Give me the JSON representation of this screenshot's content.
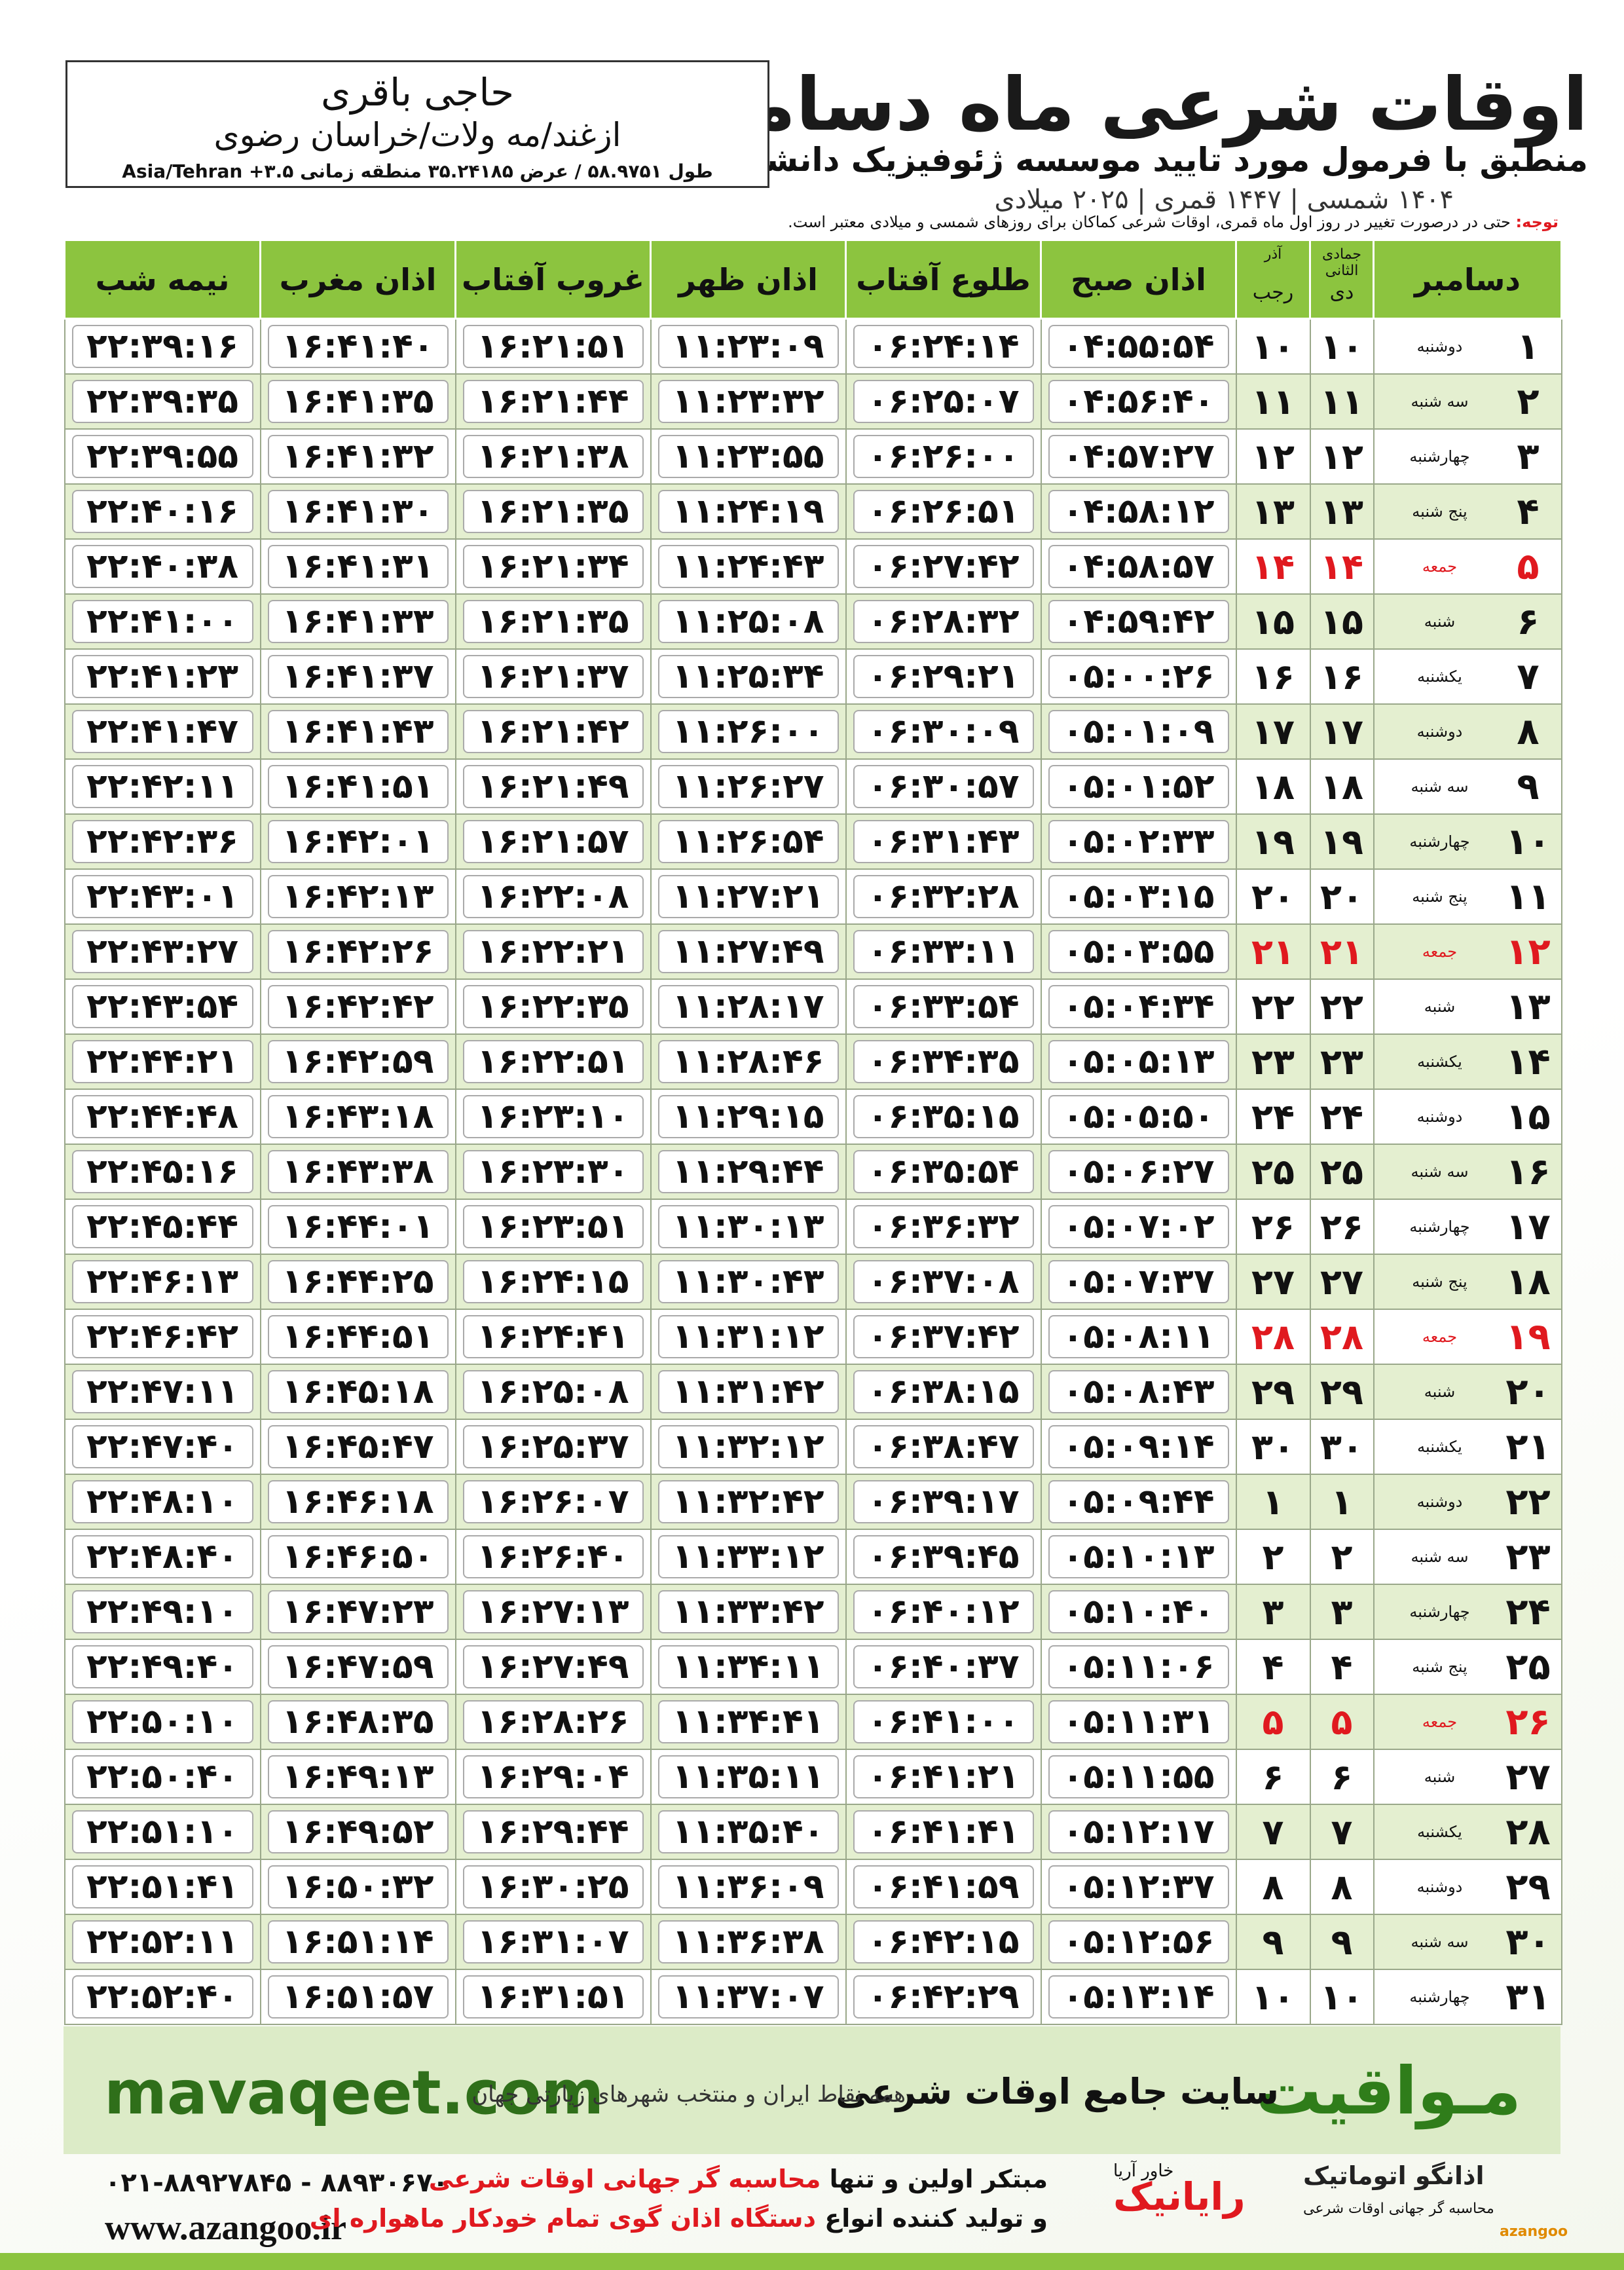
{
  "header": {
    "title": "اوقات شرعی ماه دسامبر",
    "subtitle": "منطبق با فرمول مورد تایید موسسه ژئوفیزیک دانشگاه تهران",
    "dates": "۱۴۰۴ شمسی | ۱۴۴۷ قمری | ۲۰۲۵ میلادی"
  },
  "location": {
    "name": "حاجی باقری",
    "address": "ازغند/مه ولات/خراسان رضوی",
    "coords": "طول ۵۸.۹۷۵۱ / عرض ۳۵.۲۴۱۸۵ منطقه زمانی ۳.۵+ Asia/Tehran"
  },
  "note": {
    "label": "توجه:",
    "text": "حتی در درصورت تغییر در روز اول ماه قمری، اوقات شرعی کماکان برای روزهای شمسی و میلادی معتبر است."
  },
  "table": {
    "highlight_rows": [
      4,
      11,
      18,
      25
    ],
    "highlight_color": "#e0191f",
    "columns": [
      {
        "label": "دسامبر"
      },
      {
        "label": "دی",
        "top": "جمادی الثانی"
      },
      {
        "label": "رجب",
        "top": "آذر"
      },
      {
        "label": "اذان صبح"
      },
      {
        "label": "طلوع آفتاب"
      },
      {
        "label": "اذان ظهر"
      },
      {
        "label": "غروب آفتاب"
      },
      {
        "label": "اذان مغرب"
      },
      {
        "label": "نیمه شب"
      }
    ],
    "rows": [
      [
        "۱",
        "دوشنبه",
        "۱۰",
        "۱۰",
        "۰۴:۵۵:۵۴",
        "۰۶:۲۴:۱۴",
        "۱۱:۲۳:۰۹",
        "۱۶:۲۱:۵۱",
        "۱۶:۴۱:۴۰",
        "۲۲:۳۹:۱۶"
      ],
      [
        "۲",
        "سه شنبه",
        "۱۱",
        "۱۱",
        "۰۴:۵۶:۴۰",
        "۰۶:۲۵:۰۷",
        "۱۱:۲۳:۳۲",
        "۱۶:۲۱:۴۴",
        "۱۶:۴۱:۳۵",
        "۲۲:۳۹:۳۵"
      ],
      [
        "۳",
        "چهارشنبه",
        "۱۲",
        "۱۲",
        "۰۴:۵۷:۲۷",
        "۰۶:۲۶:۰۰",
        "۱۱:۲۳:۵۵",
        "۱۶:۲۱:۳۸",
        "۱۶:۴۱:۳۲",
        "۲۲:۳۹:۵۵"
      ],
      [
        "۴",
        "پنج شنبه",
        "۱۳",
        "۱۳",
        "۰۴:۵۸:۱۲",
        "۰۶:۲۶:۵۱",
        "۱۱:۲۴:۱۹",
        "۱۶:۲۱:۳۵",
        "۱۶:۴۱:۳۰",
        "۲۲:۴۰:۱۶"
      ],
      [
        "۵",
        "جمعه",
        "۱۴",
        "۱۴",
        "۰۴:۵۸:۵۷",
        "۰۶:۲۷:۴۲",
        "۱۱:۲۴:۴۳",
        "۱۶:۲۱:۳۴",
        "۱۶:۴۱:۳۱",
        "۲۲:۴۰:۳۸"
      ],
      [
        "۶",
        "شنبه",
        "۱۵",
        "۱۵",
        "۰۴:۵۹:۴۲",
        "۰۶:۲۸:۳۲",
        "۱۱:۲۵:۰۸",
        "۱۶:۲۱:۳۵",
        "۱۶:۴۱:۳۳",
        "۲۲:۴۱:۰۰"
      ],
      [
        "۷",
        "یکشنبه",
        "۱۶",
        "۱۶",
        "۰۵:۰۰:۲۶",
        "۰۶:۲۹:۲۱",
        "۱۱:۲۵:۳۴",
        "۱۶:۲۱:۳۷",
        "۱۶:۴۱:۳۷",
        "۲۲:۴۱:۲۳"
      ],
      [
        "۸",
        "دوشنبه",
        "۱۷",
        "۱۷",
        "۰۵:۰۱:۰۹",
        "۰۶:۳۰:۰۹",
        "۱۱:۲۶:۰۰",
        "۱۶:۲۱:۴۲",
        "۱۶:۴۱:۴۳",
        "۲۲:۴۱:۴۷"
      ],
      [
        "۹",
        "سه شنبه",
        "۱۸",
        "۱۸",
        "۰۵:۰۱:۵۲",
        "۰۶:۳۰:۵۷",
        "۱۱:۲۶:۲۷",
        "۱۶:۲۱:۴۹",
        "۱۶:۴۱:۵۱",
        "۲۲:۴۲:۱۱"
      ],
      [
        "۱۰",
        "چهارشنبه",
        "۱۹",
        "۱۹",
        "۰۵:۰۲:۳۳",
        "۰۶:۳۱:۴۳",
        "۱۱:۲۶:۵۴",
        "۱۶:۲۱:۵۷",
        "۱۶:۴۲:۰۱",
        "۲۲:۴۲:۳۶"
      ],
      [
        "۱۱",
        "پنج شنبه",
        "۲۰",
        "۲۰",
        "۰۵:۰۳:۱۵",
        "۰۶:۳۲:۲۸",
        "۱۱:۲۷:۲۱",
        "۱۶:۲۲:۰۸",
        "۱۶:۴۲:۱۳",
        "۲۲:۴۳:۰۱"
      ],
      [
        "۱۲",
        "جمعه",
        "۲۱",
        "۲۱",
        "۰۵:۰۳:۵۵",
        "۰۶:۳۳:۱۱",
        "۱۱:۲۷:۴۹",
        "۱۶:۲۲:۲۱",
        "۱۶:۴۲:۲۶",
        "۲۲:۴۳:۲۷"
      ],
      [
        "۱۳",
        "شنبه",
        "۲۲",
        "۲۲",
        "۰۵:۰۴:۳۴",
        "۰۶:۳۳:۵۴",
        "۱۱:۲۸:۱۷",
        "۱۶:۲۲:۳۵",
        "۱۶:۴۲:۴۲",
        "۲۲:۴۳:۵۴"
      ],
      [
        "۱۴",
        "یکشنبه",
        "۲۳",
        "۲۳",
        "۰۵:۰۵:۱۳",
        "۰۶:۳۴:۳۵",
        "۱۱:۲۸:۴۶",
        "۱۶:۲۲:۵۱",
        "۱۶:۴۲:۵۹",
        "۲۲:۴۴:۲۱"
      ],
      [
        "۱۵",
        "دوشنبه",
        "۲۴",
        "۲۴",
        "۰۵:۰۵:۵۰",
        "۰۶:۳۵:۱۵",
        "۱۱:۲۹:۱۵",
        "۱۶:۲۳:۱۰",
        "۱۶:۴۳:۱۸",
        "۲۲:۴۴:۴۸"
      ],
      [
        "۱۶",
        "سه شنبه",
        "۲۵",
        "۲۵",
        "۰۵:۰۶:۲۷",
        "۰۶:۳۵:۵۴",
        "۱۱:۲۹:۴۴",
        "۱۶:۲۳:۳۰",
        "۱۶:۴۳:۳۸",
        "۲۲:۴۵:۱۶"
      ],
      [
        "۱۷",
        "چهارشنبه",
        "۲۶",
        "۲۶",
        "۰۵:۰۷:۰۲",
        "۰۶:۳۶:۳۲",
        "۱۱:۳۰:۱۳",
        "۱۶:۲۳:۵۱",
        "۱۶:۴۴:۰۱",
        "۲۲:۴۵:۴۴"
      ],
      [
        "۱۸",
        "پنج شنبه",
        "۲۷",
        "۲۷",
        "۰۵:۰۷:۳۷",
        "۰۶:۳۷:۰۸",
        "۱۱:۳۰:۴۳",
        "۱۶:۲۴:۱۵",
        "۱۶:۴۴:۲۵",
        "۲۲:۴۶:۱۳"
      ],
      [
        "۱۹",
        "جمعه",
        "۲۸",
        "۲۸",
        "۰۵:۰۸:۱۱",
        "۰۶:۳۷:۴۲",
        "۱۱:۳۱:۱۲",
        "۱۶:۲۴:۴۱",
        "۱۶:۴۴:۵۱",
        "۲۲:۴۶:۴۲"
      ],
      [
        "۲۰",
        "شنبه",
        "۲۹",
        "۲۹",
        "۰۵:۰۸:۴۳",
        "۰۶:۳۸:۱۵",
        "۱۱:۳۱:۴۲",
        "۱۶:۲۵:۰۸",
        "۱۶:۴۵:۱۸",
        "۲۲:۴۷:۱۱"
      ],
      [
        "۲۱",
        "یکشنبه",
        "۳۰",
        "۳۰",
        "۰۵:۰۹:۱۴",
        "۰۶:۳۸:۴۷",
        "۱۱:۳۲:۱۲",
        "۱۶:۲۵:۳۷",
        "۱۶:۴۵:۴۷",
        "۲۲:۴۷:۴۰"
      ],
      [
        "۲۲",
        "دوشنبه",
        "۱",
        "۱",
        "۰۵:۰۹:۴۴",
        "۰۶:۳۹:۱۷",
        "۱۱:۳۲:۴۲",
        "۱۶:۲۶:۰۷",
        "۱۶:۴۶:۱۸",
        "۲۲:۴۸:۱۰"
      ],
      [
        "۲۳",
        "سه شنبه",
        "۲",
        "۲",
        "۰۵:۱۰:۱۳",
        "۰۶:۳۹:۴۵",
        "۱۱:۳۳:۱۲",
        "۱۶:۲۶:۴۰",
        "۱۶:۴۶:۵۰",
        "۲۲:۴۸:۴۰"
      ],
      [
        "۲۴",
        "چهارشنبه",
        "۳",
        "۳",
        "۰۵:۱۰:۴۰",
        "۰۶:۴۰:۱۲",
        "۱۱:۳۳:۴۲",
        "۱۶:۲۷:۱۳",
        "۱۶:۴۷:۲۳",
        "۲۲:۴۹:۱۰"
      ],
      [
        "۲۵",
        "پنج شنبه",
        "۴",
        "۴",
        "۰۵:۱۱:۰۶",
        "۰۶:۴۰:۳۷",
        "۱۱:۳۴:۱۱",
        "۱۶:۲۷:۴۹",
        "۱۶:۴۷:۵۹",
        "۲۲:۴۹:۴۰"
      ],
      [
        "۲۶",
        "جمعه",
        "۵",
        "۵",
        "۰۵:۱۱:۳۱",
        "۰۶:۴۱:۰۰",
        "۱۱:۳۴:۴۱",
        "۱۶:۲۸:۲۶",
        "۱۶:۴۸:۳۵",
        "۲۲:۵۰:۱۰"
      ],
      [
        "۲۷",
        "شنبه",
        "۶",
        "۶",
        "۰۵:۱۱:۵۵",
        "۰۶:۴۱:۲۱",
        "۱۱:۳۵:۱۱",
        "۱۶:۲۹:۰۴",
        "۱۶:۴۹:۱۳",
        "۲۲:۵۰:۴۰"
      ],
      [
        "۲۸",
        "یکشنبه",
        "۷",
        "۷",
        "۰۵:۱۲:۱۷",
        "۰۶:۴۱:۴۱",
        "۱۱:۳۵:۴۰",
        "۱۶:۲۹:۴۴",
        "۱۶:۴۹:۵۲",
        "۲۲:۵۱:۱۰"
      ],
      [
        "۲۹",
        "دوشنبه",
        "۸",
        "۸",
        "۰۵:۱۲:۳۷",
        "۰۶:۴۱:۵۹",
        "۱۱:۳۶:۰۹",
        "۱۶:۳۰:۲۵",
        "۱۶:۵۰:۳۲",
        "۲۲:۵۱:۴۱"
      ],
      [
        "۳۰",
        "سه شنبه",
        "۹",
        "۹",
        "۰۵:۱۲:۵۶",
        "۰۶:۴۲:۱۵",
        "۱۱:۳۶:۳۸",
        "۱۶:۳۱:۰۷",
        "۱۶:۵۱:۱۴",
        "۲۲:۵۲:۱۱"
      ],
      [
        "۳۱",
        "چهارشنبه",
        "۱۰",
        "۱۰",
        "۰۵:۱۳:۱۴",
        "۰۶:۴۲:۲۹",
        "۱۱:۳۷:۰۷",
        "۱۶:۳۱:۵۱",
        "۱۶:۵۱:۵۷",
        "۲۲:۵۲:۴۰"
      ]
    ]
  },
  "banner": {
    "site": "mavaqeet.com",
    "brand": "مـواقیت",
    "slogan": "سایت جامع اوقات شرعی",
    "tagline": "همه نقاط ایران و منتخب شهرهای زیارتی جهان"
  },
  "footer": {
    "phone": "۰۲۱-۸۸۹۲۷۸۴۵ - ۸۸۹۳۰۶۷۰",
    "web": "www.azangoo.ir",
    "line1_a": "مبتکر اولین و تنها",
    "line1_b": "محاسبه گر جهانی اوقات شرعی",
    "line2_a": "و تولید کننده انواع",
    "line2_b": "دستگاه اذان گوی تمام خودکار ماهواره ای",
    "logo1": "رایانیک",
    "logo1_sub": "خاور آریا",
    "logo2": "اذانگو اتوماتیک",
    "logo2_sub": "محاسبه گر جهانی اوقات شرعی",
    "logo2_en": "azangoo"
  }
}
